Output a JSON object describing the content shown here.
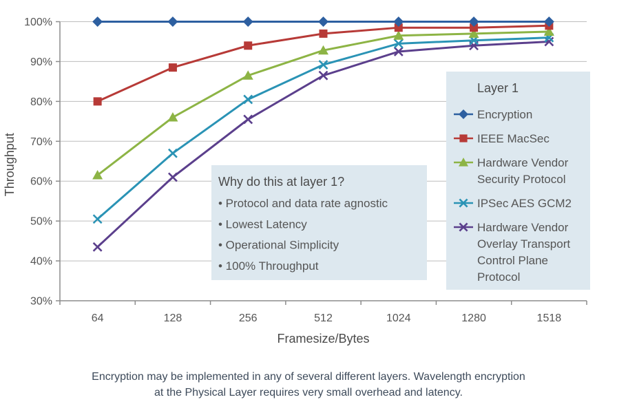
{
  "chart_data": {
    "type": "line",
    "categories": [
      "64",
      "128",
      "256",
      "512",
      "1024",
      "1280",
      "1518"
    ],
    "xlabel": "Framesize/Bytes",
    "ylabel": "Throughput",
    "ylim": [
      30,
      100
    ],
    "yticks": [
      30,
      40,
      50,
      60,
      70,
      80,
      90,
      100
    ],
    "ytick_labels": [
      "30%",
      "40%",
      "50%",
      "60%",
      "70%",
      "80%",
      "90%",
      "100%"
    ],
    "grid": "horizontal",
    "legend": {
      "title": "Layer 1",
      "placement": "right"
    },
    "series": [
      {
        "name": "Encryption",
        "color": "#2d5fa0",
        "marker": "diamond",
        "values": [
          100,
          100,
          100,
          100,
          100,
          100,
          100
        ],
        "legend_lines": [
          "Encryption"
        ]
      },
      {
        "name": "IEEE MacSec",
        "color": "#b73a37",
        "marker": "square",
        "values": [
          80,
          88.5,
          94,
          97,
          98.5,
          98.5,
          99
        ],
        "legend_lines": [
          "IEEE MacSec"
        ]
      },
      {
        "name": "Hardware Vendor Security Protocol",
        "color": "#8db445",
        "marker": "triangle",
        "values": [
          61.5,
          76,
          86.5,
          92.8,
          96.5,
          97,
          97.5
        ],
        "legend_lines": [
          "Hardware Vendor",
          "Security Protocol"
        ]
      },
      {
        "name": "IPSec AES GCM2",
        "color": "#2a93b5",
        "marker": "x",
        "values": [
          50.5,
          67,
          80.5,
          89.2,
          94.5,
          95.3,
          96
        ],
        "legend_lines": [
          "IPSec AES GCM2"
        ]
      },
      {
        "name": "Hardware Vendor Overlay Transport Control Plane Protocol",
        "color": "#5b3f8c",
        "marker": "x",
        "values": [
          43.5,
          61,
          75.5,
          86.5,
          92.5,
          94,
          95
        ],
        "legend_lines": [
          "Hardware Vendor",
          "Overlay Transport",
          "Control Plane",
          "Protocol"
        ]
      }
    ],
    "annotation": {
      "title": "Why do this at layer 1?",
      "bullets": [
        "• Protocol and data rate agnostic",
        "• Lowest Latency",
        "• Operational Simplicity",
        "• 100% Throughput"
      ]
    }
  },
  "caption": {
    "line1": "Encryption may be implemented in any of several different layers. Wavelength encryption",
    "line2": "at the Physical Layer requires very small overhead and latency."
  },
  "colors": {
    "box_fill": "#dde8ef",
    "grid": "#bdbdbd",
    "axis": "#8c8c8c"
  }
}
